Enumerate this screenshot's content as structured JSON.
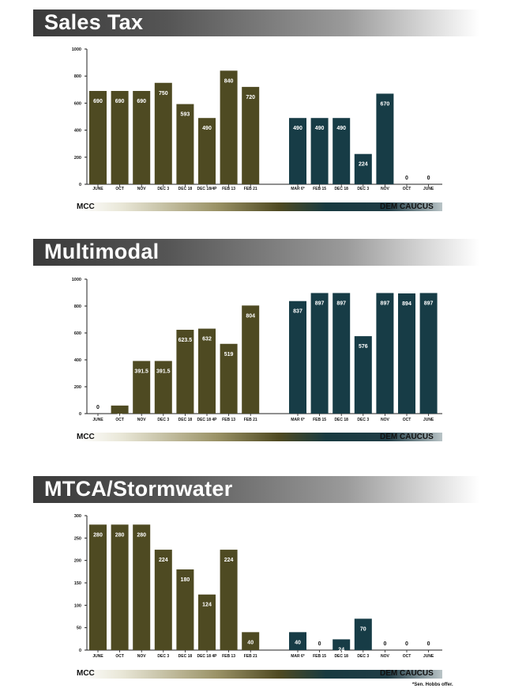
{
  "legend_left": "MCC",
  "legend_right": "DEM CAUCUS",
  "footnote": "*Sen. Hobbs offer.",
  "colors": {
    "mcc": "#4e4a22",
    "dem": "#173c46"
  },
  "chart_data": [
    {
      "type": "bar",
      "title": "Sales Tax",
      "ylim": [
        0,
        1000
      ],
      "yticks": [
        "0",
        "200",
        "400",
        "600",
        "800",
        "1000"
      ],
      "groups": [
        {
          "name": "MCC",
          "categories": [
            "JUNE",
            "OCT",
            "NOV",
            "DEC 3",
            "DEC 18",
            "DEC 18/4P",
            "FEB 13",
            "FEB 21"
          ],
          "values": [
            690,
            690,
            690,
            750,
            593,
            490,
            840,
            720
          ],
          "labels": [
            "690",
            "690",
            "690",
            "750",
            "593",
            "490",
            "840",
            "720"
          ]
        },
        {
          "name": "DEM CAUCUS",
          "categories": [
            "MAR 6*",
            "FEB 15",
            "DEC 18",
            "DEC 3",
            "NOV",
            "OCT",
            "JUNE"
          ],
          "values": [
            490,
            490,
            490,
            224,
            670,
            0,
            0
          ],
          "labels": [
            "490",
            "490",
            "490",
            "224",
            "670",
            "0",
            "0"
          ]
        }
      ]
    },
    {
      "type": "bar",
      "title": "Multimodal",
      "ylim": [
        0,
        1000
      ],
      "yticks": [
        "0",
        "200",
        "400",
        "600",
        "800",
        "1000"
      ],
      "groups": [
        {
          "name": "MCC",
          "categories": [
            "JUNE",
            "OCT",
            "NOV",
            "DEC 3",
            "DEC 18",
            "DEC 18 4P",
            "FEB 13",
            "FEB 21"
          ],
          "values": [
            0,
            60,
            391.5,
            391.5,
            623.5,
            632,
            519,
            804
          ],
          "labels": [
            "0",
            "60",
            "391.5",
            "391.5",
            "623.5",
            "632",
            "519",
            "804"
          ]
        },
        {
          "name": "DEM CAUCUS",
          "categories": [
            "MAR 6*",
            "FEB 15",
            "DEC 18",
            "DEC 3",
            "NOV",
            "OCT",
            "JUNE"
          ],
          "values": [
            837,
            897,
            897,
            576,
            897,
            894,
            897
          ],
          "labels": [
            "837",
            "897",
            "897",
            "576",
            "897",
            "894",
            "897"
          ]
        }
      ]
    },
    {
      "type": "bar",
      "title": "MTCA/Stormwater",
      "ylim": [
        0,
        300
      ],
      "yticks": [
        "0",
        "50",
        "100",
        "150",
        "200",
        "250",
        "300"
      ],
      "groups": [
        {
          "name": "MCC",
          "categories": [
            "JUNE",
            "OCT",
            "NOV",
            "DEC 3",
            "DEC 18",
            "DEC 18 4P",
            "FEB 13",
            "FEB 21"
          ],
          "values": [
            280,
            280,
            280,
            224,
            180,
            124,
            224,
            40
          ],
          "labels": [
            "280",
            "280",
            "280",
            "224",
            "180",
            "124",
            "224",
            "40"
          ]
        },
        {
          "name": "DEM CAUCUS",
          "categories": [
            "MAR 6*",
            "FEB 15",
            "DEC 18",
            "DEC 3",
            "NOV",
            "OCT",
            "JUNE"
          ],
          "values": [
            40,
            0,
            24,
            70,
            0,
            0,
            0
          ],
          "labels": [
            "40",
            "0",
            "24",
            "70",
            "0",
            "0",
            "0"
          ]
        }
      ]
    }
  ]
}
